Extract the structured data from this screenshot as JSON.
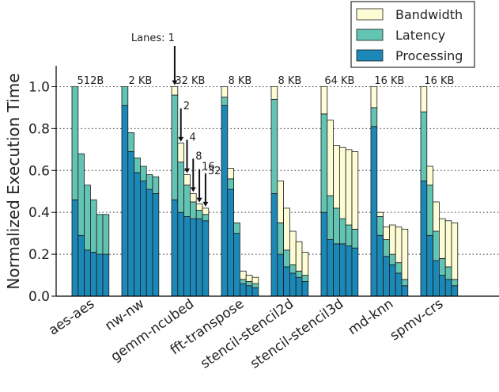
{
  "chart_data": {
    "type": "bar",
    "ylabel": "Normalized Execution Time",
    "ylim": [
      0,
      1.1
    ],
    "yticks": [
      "0.0",
      "0.2",
      "0.4",
      "0.6",
      "0.8",
      "1.0"
    ],
    "grid": "horizontal dotted",
    "legend_position": "top-right",
    "stack_order": [
      "Processing",
      "Latency",
      "Bandwidth"
    ],
    "colors": {
      "Processing": "#1b88b7",
      "Latency": "#64c4b4",
      "Bandwidth": "#fdfcd4"
    },
    "lanes": [
      1,
      2,
      4,
      8,
      16,
      32
    ],
    "lane_labels": [
      "Lanes: 1",
      "2",
      "4",
      "8",
      "16",
      "32"
    ],
    "groups": [
      {
        "name": "aes-aes",
        "size": "512B",
        "processing": [
          0.46,
          0.29,
          0.22,
          0.21,
          0.2,
          0.2
        ],
        "latency": [
          0.54,
          0.39,
          0.31,
          0.25,
          0.19,
          0.19
        ],
        "bandwidth": [
          0,
          0,
          0,
          0,
          0,
          0
        ]
      },
      {
        "name": "nw-nw",
        "size": "2 KB",
        "processing": [
          0.91,
          0.69,
          0.59,
          0.55,
          0.51,
          0.49
        ],
        "latency": [
          0.09,
          0.09,
          0.07,
          0.07,
          0.07,
          0.08
        ],
        "bandwidth": [
          0,
          0,
          0,
          0,
          0,
          0
        ]
      },
      {
        "name": "gemm-ncubed",
        "size": "32 KB",
        "processing": [
          0.46,
          0.4,
          0.38,
          0.37,
          0.37,
          0.36
        ],
        "latency": [
          0.5,
          0.24,
          0.15,
          0.08,
          0.04,
          0.03
        ],
        "bandwidth": [
          0.04,
          0.09,
          0.05,
          0.04,
          0.03,
          0.03
        ]
      },
      {
        "name": "fft-transpose",
        "size": "8 KB",
        "processing": [
          0.91,
          0.51,
          0.3,
          0.06,
          0.05,
          0.04
        ],
        "latency": [
          0.04,
          0.05,
          0.05,
          0.02,
          0.02,
          0.02
        ],
        "bandwidth": [
          0.05,
          0.05,
          0.0,
          0.04,
          0.03,
          0.03
        ]
      },
      {
        "name": "stencil-stencil2d",
        "size": "8 KB",
        "processing": [
          0.49,
          0.2,
          0.14,
          0.11,
          0.09,
          0.07
        ],
        "latency": [
          0.45,
          0.15,
          0.08,
          0.04,
          0.03,
          0.03
        ],
        "bandwidth": [
          0.06,
          0.2,
          0.2,
          0.16,
          0.14,
          0.11
        ]
      },
      {
        "name": "stencil-stencil3d",
        "size": "64 KB",
        "processing": [
          0.4,
          0.27,
          0.25,
          0.25,
          0.24,
          0.23
        ],
        "latency": [
          0.47,
          0.21,
          0.17,
          0.12,
          0.1,
          0.09
        ],
        "bandwidth": [
          0.13,
          0.36,
          0.3,
          0.34,
          0.36,
          0.37
        ]
      },
      {
        "name": "md-knn",
        "size": "16 KB",
        "processing": [
          0.81,
          0.29,
          0.19,
          0.15,
          0.11,
          0.05
        ],
        "latency": [
          0.09,
          0.09,
          0.08,
          0.05,
          0.05,
          0.03
        ],
        "bandwidth": [
          0.1,
          0.02,
          0.06,
          0.14,
          0.17,
          0.24
        ]
      },
      {
        "name": "spmv-crs",
        "size": "16 KB",
        "processing": [
          0.55,
          0.29,
          0.17,
          0.1,
          0.08,
          0.05
        ],
        "latency": [
          0.33,
          0.24,
          0.14,
          0.08,
          0.06,
          0.03
        ],
        "bandwidth": [
          0.12,
          0.09,
          0.14,
          0.19,
          0.22,
          0.27
        ]
      }
    ]
  }
}
